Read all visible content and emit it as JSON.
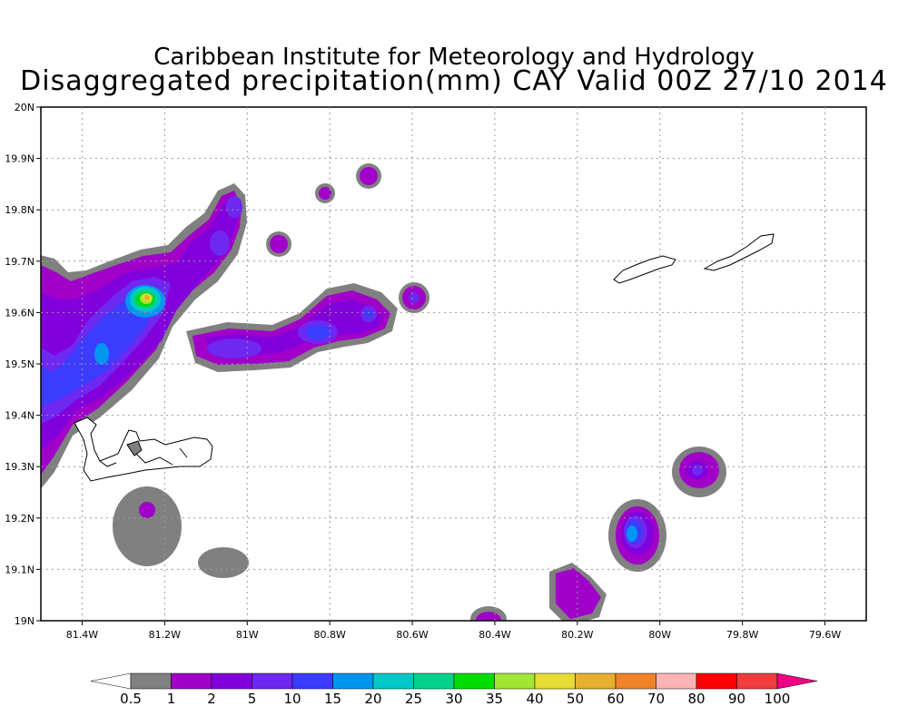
{
  "title_line1": "Caribbean Institute for Meteorology and Hydrology",
  "title_line2": "Disaggregated precipitation(mm) CAY Valid 00Z 27/10 2014",
  "map": {
    "lon_range": [
      -81.5,
      -79.5
    ],
    "lat_range": [
      19.0,
      20.0
    ],
    "grid": true,
    "x_ticks": [
      {
        "label": "81.4W",
        "lon": -81.4
      },
      {
        "label": "81.2W",
        "lon": -81.2
      },
      {
        "label": "81W",
        "lon": -81.0
      },
      {
        "label": "80.8W",
        "lon": -80.8
      },
      {
        "label": "80.6W",
        "lon": -80.6
      },
      {
        "label": "80.4W",
        "lon": -80.4
      },
      {
        "label": "80.2W",
        "lon": -80.2
      },
      {
        "label": "80W",
        "lon": -80.0
      },
      {
        "label": "79.8W",
        "lon": -79.8
      },
      {
        "label": "79.6W",
        "lon": -79.6
      }
    ],
    "y_ticks": [
      {
        "label": "19N",
        "lat": 19.0
      },
      {
        "label": "19.1N",
        "lat": 19.1
      },
      {
        "label": "19.2N",
        "lat": 19.2
      },
      {
        "label": "19.3N",
        "lat": 19.3
      },
      {
        "label": "19.4N",
        "lat": 19.4
      },
      {
        "label": "19.5N",
        "lat": 19.5
      },
      {
        "label": "19.6N",
        "lat": 19.6
      },
      {
        "label": "19.7N",
        "lat": 19.7
      },
      {
        "label": "19.8N",
        "lat": 19.8
      },
      {
        "label": "19.9N",
        "lat": 19.9
      },
      {
        "label": "20N",
        "lat": 20.0
      }
    ]
  },
  "colorbar": {
    "colors": [
      "#ffffff",
      "#808080",
      "#a000c8",
      "#8200dc",
      "#6e28f0",
      "#3c3cff",
      "#0096f0",
      "#00c8c8",
      "#00d28c",
      "#00dc00",
      "#a0e632",
      "#e6dc32",
      "#e6af2d",
      "#f08228",
      "#fab4b4",
      "#ff0000",
      "#f03c3c",
      "#f00082"
    ],
    "labels": [
      "0.5",
      "1",
      "2",
      "5",
      "10",
      "15",
      "20",
      "25",
      "30",
      "35",
      "40",
      "50",
      "60",
      "70",
      "80",
      "90",
      "100"
    ]
  }
}
